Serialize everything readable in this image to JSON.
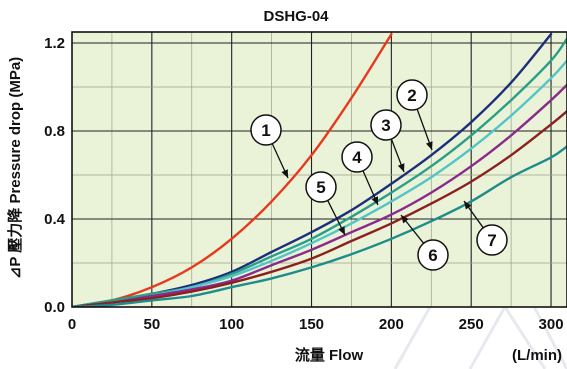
{
  "chart_data": {
    "type": "line",
    "title": "DSHG-04",
    "xlabel": "流量  Flow",
    "x_unit": "(L/min)",
    "ylabel": "⊿P 壓力降  Pressure drop (MPa)",
    "xlim": [
      0,
      310
    ],
    "ylim": [
      0,
      1.25
    ],
    "x_ticks": [
      0,
      50,
      100,
      150,
      200,
      250,
      300
    ],
    "x_tick_labels": [
      "0",
      "50",
      "100",
      "150",
      "200",
      "250",
      "300"
    ],
    "y_ticks": [
      0,
      0.4,
      0.8,
      1.2
    ],
    "y_tick_labels": [
      "0.0",
      "0.4",
      "0.8",
      "1.2"
    ],
    "grid": true,
    "plot_background": "#eaf2d8",
    "series": [
      {
        "name": "1",
        "color": "#e8381c",
        "x": [
          0,
          25,
          50,
          75,
          100,
          125,
          150,
          175,
          200
        ],
        "y": [
          0,
          0.03,
          0.09,
          0.18,
          0.31,
          0.48,
          0.69,
          0.95,
          1.24
        ]
      },
      {
        "name": "2",
        "color": "#1c2f7a",
        "x": [
          0,
          25,
          50,
          75,
          100,
          125,
          150,
          175,
          200,
          225,
          250,
          275,
          300
        ],
        "y": [
          0,
          0.03,
          0.06,
          0.1,
          0.16,
          0.25,
          0.34,
          0.44,
          0.56,
          0.69,
          0.84,
          1.02,
          1.24
        ]
      },
      {
        "name": "3",
        "color": "#2a9f88",
        "x": [
          0,
          25,
          50,
          75,
          100,
          125,
          150,
          175,
          200,
          225,
          250,
          275,
          300,
          310
        ],
        "y": [
          0,
          0.03,
          0.06,
          0.09,
          0.15,
          0.23,
          0.31,
          0.41,
          0.52,
          0.64,
          0.78,
          0.94,
          1.12,
          1.22
        ]
      },
      {
        "name": "4",
        "color": "#52c4c8",
        "x": [
          0,
          25,
          50,
          75,
          100,
          125,
          150,
          175,
          200,
          225,
          250,
          275,
          300,
          310
        ],
        "y": [
          0,
          0.02,
          0.05,
          0.09,
          0.14,
          0.21,
          0.29,
          0.38,
          0.48,
          0.59,
          0.72,
          0.87,
          1.04,
          1.12
        ]
      },
      {
        "name": "5",
        "color": "#8a2a8a",
        "x": [
          0,
          25,
          50,
          75,
          100,
          125,
          150,
          175,
          200,
          225,
          250,
          275,
          300,
          310
        ],
        "y": [
          0,
          0.02,
          0.05,
          0.08,
          0.12,
          0.19,
          0.26,
          0.34,
          0.42,
          0.52,
          0.64,
          0.78,
          0.94,
          1.01
        ]
      },
      {
        "name": "6",
        "color": "#8a2020",
        "x": [
          0,
          25,
          50,
          75,
          100,
          125,
          150,
          175,
          200,
          225,
          250,
          275,
          300,
          310
        ],
        "y": [
          0,
          0.02,
          0.04,
          0.07,
          0.11,
          0.16,
          0.22,
          0.3,
          0.38,
          0.47,
          0.57,
          0.69,
          0.83,
          0.89
        ]
      },
      {
        "name": "7",
        "color": "#1f8c8c",
        "x": [
          0,
          25,
          50,
          75,
          100,
          125,
          150,
          175,
          200,
          225,
          250,
          275,
          300,
          310
        ],
        "y": [
          0,
          0.01,
          0.03,
          0.05,
          0.09,
          0.13,
          0.18,
          0.24,
          0.31,
          0.39,
          0.48,
          0.59,
          0.68,
          0.73
        ]
      }
    ],
    "callouts": [
      {
        "label": "1"
      },
      {
        "label": "2"
      },
      {
        "label": "3"
      },
      {
        "label": "4"
      },
      {
        "label": "5"
      },
      {
        "label": "6"
      },
      {
        "label": "7"
      }
    ]
  }
}
